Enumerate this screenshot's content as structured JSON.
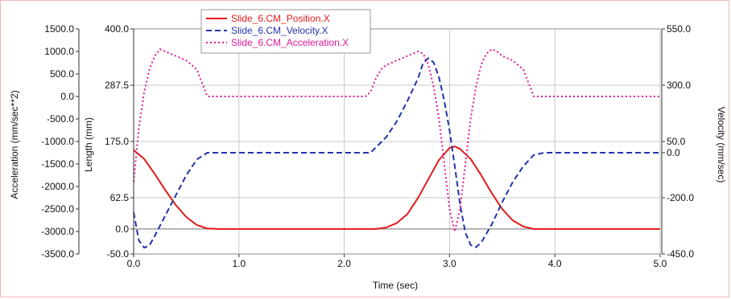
{
  "chart_data": {
    "type": "line",
    "title": "",
    "xlabel": "Time (sec)",
    "xlim": [
      0.0,
      5.0
    ],
    "xticks": [
      "0.0",
      "1.0",
      "2.0",
      "3.0",
      "4.0",
      "5.0"
    ],
    "grid": true,
    "legend_position": "top-left",
    "axes": {
      "left_outer": {
        "label": "Acceleration (mm/sec**2)",
        "ylim": [
          -3500.0,
          1500.0
        ],
        "ticks": [
          "1500.0",
          "1000.0",
          "500.0",
          "0.0",
          "-500.0",
          "-1000.0",
          "-1500.0",
          "-2000.0",
          "-2500.0",
          "-3000.0",
          "-3500.0"
        ]
      },
      "left_inner": {
        "label": "Length (mm)",
        "ylim": [
          -50.0,
          400.0
        ],
        "ticks": [
          "400.0",
          "287.5",
          "175.0",
          "62.5",
          "0.0",
          "-50.0"
        ]
      },
      "right": {
        "label": "Velocity (mm/sec)",
        "ylim": [
          -450.0,
          550.0
        ],
        "ticks": [
          "550.0",
          "300.0",
          "50.0",
          "0.0",
          "-200.0",
          "-450.0"
        ]
      }
    },
    "series": [
      {
        "name": "Slide_6.CM_Position.X",
        "axis": "left_inner",
        "color": "#e31a1c",
        "style": "solid",
        "x": [
          0.0,
          0.1,
          0.2,
          0.3,
          0.4,
          0.5,
          0.6,
          0.7,
          0.8,
          1.0,
          1.5,
          2.0,
          2.3,
          2.4,
          2.5,
          2.6,
          2.7,
          2.8,
          2.9,
          3.0,
          3.05,
          3.1,
          3.2,
          3.3,
          3.4,
          3.5,
          3.6,
          3.7,
          3.8,
          4.0,
          4.5,
          5.0
        ],
        "values": [
          158,
          140,
          110,
          78,
          48,
          24,
          8,
          1,
          0,
          0,
          0,
          0,
          0,
          3,
          12,
          30,
          62,
          100,
          138,
          162,
          165,
          160,
          140,
          108,
          72,
          40,
          17,
          5,
          0,
          0,
          0,
          0
        ]
      },
      {
        "name": "Slide_6.CM_Velocity.X",
        "axis": "right",
        "color": "#2233aa",
        "style": "dashed",
        "x": [
          0.0,
          0.05,
          0.1,
          0.15,
          0.2,
          0.3,
          0.4,
          0.5,
          0.6,
          0.7,
          0.8,
          1.0,
          1.5,
          2.0,
          2.25,
          2.4,
          2.5,
          2.6,
          2.7,
          2.75,
          2.8,
          2.85,
          2.9,
          2.95,
          3.0,
          3.05,
          3.1,
          3.15,
          3.2,
          3.25,
          3.3,
          3.4,
          3.5,
          3.6,
          3.7,
          3.8,
          3.9,
          4.0,
          4.5,
          5.0
        ],
        "values": [
          -265,
          -390,
          -422,
          -412,
          -370,
          -280,
          -190,
          -100,
          -30,
          0,
          0,
          0,
          0,
          0,
          0,
          70,
          140,
          230,
          330,
          400,
          420,
          400,
          335,
          230,
          100,
          -60,
          -230,
          -355,
          -410,
          -420,
          -400,
          -320,
          -220,
          -130,
          -60,
          -10,
          0,
          0,
          0,
          0
        ]
      },
      {
        "name": "Slide_6.CM_Acceleration.X",
        "axis": "left_outer",
        "color": "#e0189a",
        "style": "dotted",
        "x": [
          0.0,
          0.05,
          0.1,
          0.15,
          0.2,
          0.25,
          0.3,
          0.35,
          0.4,
          0.5,
          0.6,
          0.65,
          0.7,
          0.75,
          1.0,
          1.5,
          2.0,
          2.2,
          2.25,
          2.3,
          2.35,
          2.4,
          2.5,
          2.6,
          2.7,
          2.75,
          2.8,
          2.85,
          2.9,
          2.95,
          3.0,
          3.05,
          3.1,
          3.15,
          3.2,
          3.25,
          3.3,
          3.35,
          3.4,
          3.45,
          3.5,
          3.6,
          3.7,
          3.75,
          3.8,
          3.85,
          4.0,
          4.5,
          5.0
        ],
        "values": [
          -1900,
          -700,
          100,
          600,
          900,
          1050,
          1000,
          950,
          900,
          800,
          600,
          300,
          0,
          0,
          0,
          0,
          0,
          0,
          100,
          400,
          600,
          700,
          800,
          900,
          1000,
          950,
          700,
          200,
          -500,
          -1500,
          -2500,
          -3000,
          -2500,
          -1500,
          -500,
          200,
          700,
          950,
          1050,
          1000,
          900,
          800,
          600,
          300,
          0,
          0,
          0,
          0,
          0
        ]
      }
    ]
  }
}
